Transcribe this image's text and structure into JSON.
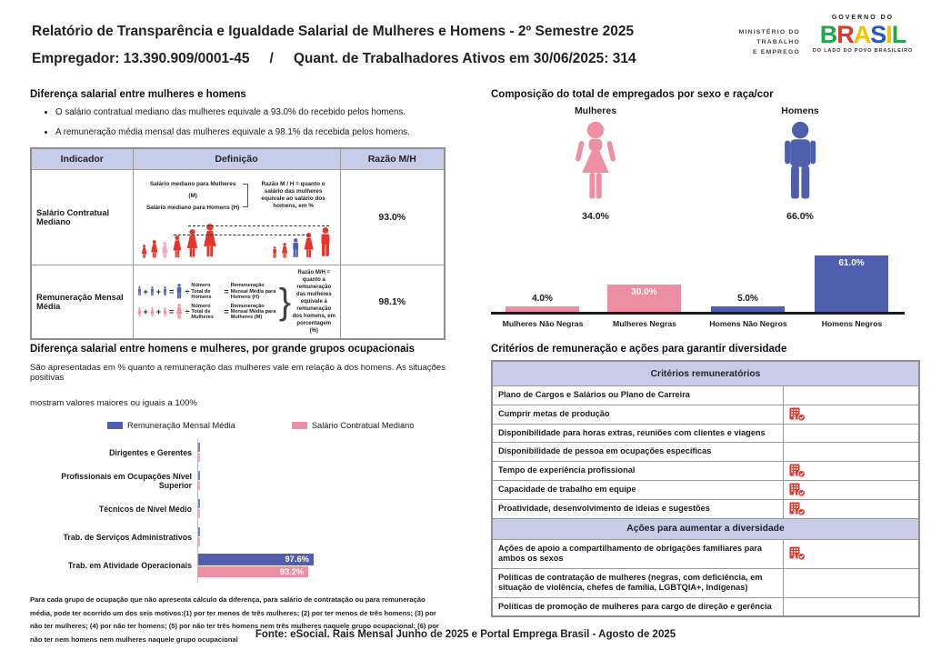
{
  "colors": {
    "female_pink": "#ee8fa3",
    "light_pink": "#f2a9c0",
    "male_blue": "#4f5fae",
    "figure_red": "#e5342b",
    "header_lavender": "#c9cce9",
    "icon_red": "#e5342b"
  },
  "header": {
    "title_line1": "Relatório de Transparência e Igualdade Salarial de Mulheres e Homens - 2º Semestre 2025",
    "employer": "Empregador: 13.390.909/0001-45",
    "separator": "/",
    "active_workers": "Quant. de Trabalhadores Ativos em 30/06/2025: 314",
    "ministry": [
      "MINISTÉRIO DO",
      "TRABALHO",
      "E EMPREGO"
    ],
    "gov": {
      "top": "GOVERNO DO",
      "name": "BRASIL",
      "bottom": "DO LADO DO POVO BRASILEIRO",
      "letter_colors": [
        "#1fa74a",
        "#e6342c",
        "#f5c400",
        "#2757c4",
        "#f5c400",
        "#1fa74a"
      ]
    }
  },
  "left_top": {
    "title": "Diferença salarial entre mulheres e homens",
    "bullets": [
      "O salário contratual mediano das mulheres equivale a 93.0% do recebido pelos homens.",
      "A remuneração média mensal das mulheres equivale a 98.1% da recebida pelos homens."
    ],
    "operators": {
      "plus": "+",
      "equals": "=",
      "divide": "÷"
    },
    "table": {
      "col_headers": [
        "Indicador",
        "Definição",
        "Razão M/H"
      ],
      "rows": [
        {
          "indicator": "Salário Contratual Mediano",
          "ratio": "93.0%",
          "diagram": {
            "line1": "Salário mediano para Mulheres (M)",
            "line2": "Salário mediano para Homens (H)",
            "note": "Razão M / H = quanto o salário das mulheres equivale ao salário dos homens, em %"
          }
        },
        {
          "indicator": "Remuneração Mensal Média",
          "ratio": "98.1%",
          "diagram": {
            "men_divisor": "Número Total de Homens",
            "men_result": "Remuneração Mensal Média para Homens (H)",
            "women_divisor": "Número Total de Mulheres",
            "women_result": "Remuneração Mensal Média para Mulheres (M)",
            "note": "Razão M/H = quanto a remuneração das mulheres equivale à remuneração dos homens, em porcentagem (%)"
          }
        }
      ]
    }
  },
  "left_bottom": {
    "title": "Diferença salarial entre homens e mulheres, por grande grupos ocupacionais",
    "subtitle_line1": "São apresentadas em % quanto a remuneração das mulheres vale em relação à dos homens. As situações positivas",
    "subtitle_line2": "mostram valores maiores ou iguais a 100%",
    "legend": [
      {
        "label": "Remuneração Mensal Média",
        "color": "#4f5fae"
      },
      {
        "label": "Salário Contratual Mediano",
        "color": "#ec8fa4"
      }
    ],
    "chart_data": {
      "type": "bar",
      "orientation": "horizontal",
      "categories": [
        "Dirigentes e Gerentes",
        "Profissionais em Ocupações Nível Superior",
        "Técnicos de Nível Médio",
        "Trab. de Serviços Administrativos",
        "Trab. em Atividade Operacionais"
      ],
      "series": [
        {
          "name": "Remuneração Mensal Média",
          "color": "#4f5fae",
          "values": [
            null,
            null,
            null,
            null,
            97.6
          ],
          "labels": [
            null,
            null,
            null,
            null,
            "97.6%"
          ]
        },
        {
          "name": "Salário Contratual Mediano",
          "color": "#ec8fa4",
          "values": [
            null,
            null,
            null,
            null,
            93.2
          ],
          "labels": [
            null,
            null,
            null,
            null,
            "93.2%"
          ]
        }
      ],
      "xlim": [
        0,
        100
      ],
      "value_suffix": "%",
      "grid": false,
      "legend_position": "top"
    },
    "footnote": "Para cada grupo de ocupação que não apresenta cálculo da diferença, para salário de contratação ou para remuneração média, pode ter ocorrido um dos seis motivos:(1) por ter menos de três mulheres; (2) por ter menos de três homens; (3) por não ter mulheres; (4) por não ter homens; (5) por não ter três homens nem três mulheres naquele grupo ocupacional; (6) por não ter nem homens nem mulheres naquele grupo ocupacional"
  },
  "right_top": {
    "title": "Composição do total de empregados por sexo e raça/cor",
    "female": {
      "label": "Mulheres",
      "pct": "34.0%"
    },
    "male": {
      "label": "Homens",
      "pct": "66.0%"
    },
    "chart_data": {
      "type": "bar",
      "categories": [
        "Mulheres Não Negras",
        "Mulheres Negras",
        "Homens Não Negros",
        "Homens Negros"
      ],
      "values": [
        4.0,
        30.0,
        5.0,
        61.0
      ],
      "labels": [
        "4.0%",
        "30.0%",
        "5.0%",
        "61.0%"
      ],
      "colors": [
        "#ec8fa4",
        "#ec8fa4",
        "#4f5fae",
        "#4f5fae"
      ],
      "ylim": [
        0,
        100
      ],
      "grid": false
    }
  },
  "right_bottom": {
    "title": "Critérios de remuneração e ações para garantir diversidade",
    "section1_header": "Critérios remuneratórios",
    "section2_header": "Ações para aumentar a diversidade",
    "rows": [
      {
        "label": "Plano de Cargos e Salários ou Plano de Carreira",
        "checked": false
      },
      {
        "label": "Cumprir metas de produção",
        "checked": true
      },
      {
        "label": "Disponibilidade para horas extras, reuniões com clientes e viagens",
        "checked": false
      },
      {
        "label": "Disponibilidade de pessoa em ocupações específicas",
        "checked": false
      },
      {
        "label": "Tempo de experiência profissional",
        "checked": true
      },
      {
        "label": "Capacidade de trabalho em equipe",
        "checked": true
      },
      {
        "label": "Proatividade, desenvolvimento de ideias e sugestões",
        "checked": true
      }
    ],
    "rows2": [
      {
        "label": "Ações de apoio a compartilhamento de obrigações familiares para ambos os sexos",
        "checked": true
      },
      {
        "label": "Políticas de contratação de mulheres (negras, com deficiência, em situação de violência, chefes de família, LGBTQIA+, Indígenas)",
        "checked": false
      },
      {
        "label": "Políticas de promoção de mulheres para cargo de direção e gerência",
        "checked": false
      }
    ]
  },
  "footer": {
    "source": "Fonte: eSocial. Rais Mensal Junho de 2025 e Portal Emprega Brasil - Agosto de 2025"
  }
}
